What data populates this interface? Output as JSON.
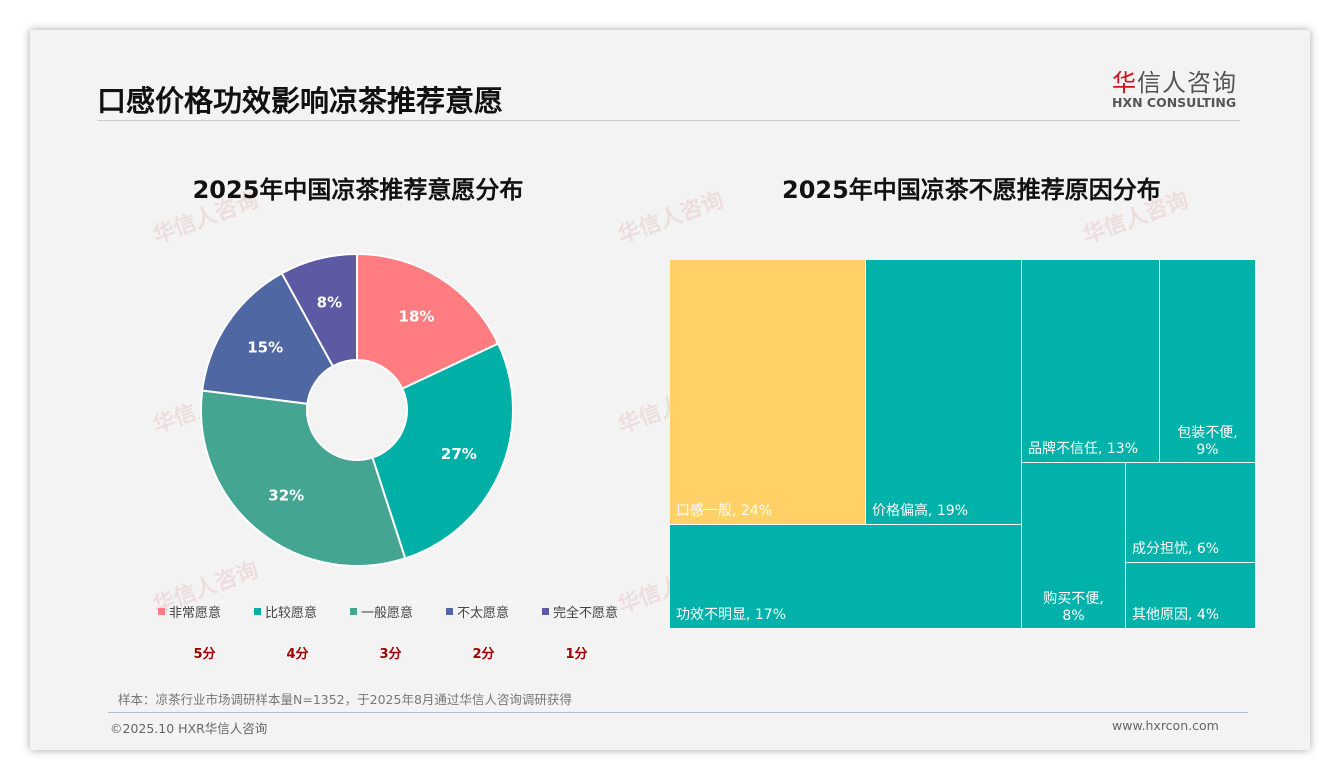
{
  "header": {
    "title": "口感价格功效影响凉茶推荐意愿",
    "logo_cn_red": "华",
    "logo_cn": "信人咨询",
    "logo_en": "HXN CONSULTING"
  },
  "chart_data": [
    {
      "type": "pie",
      "title": "2025年中国凉茶推荐意愿分布",
      "categories": [
        "非常愿意",
        "比较愿意",
        "一般愿意",
        "不太愿意",
        "完全不愿意"
      ],
      "values": [
        18,
        27,
        32,
        15,
        8
      ],
      "labels": [
        "18%",
        "27%",
        "32%",
        "15%",
        "8%"
      ],
      "scores": [
        "5分",
        "4分",
        "3分",
        "2分",
        "1分"
      ],
      "colors": [
        "#ff7c80",
        "#00b0a6",
        "#45a593",
        "#4f67a3",
        "#5b5aa3"
      ],
      "legend": "bottom"
    },
    {
      "type": "treemap",
      "title": "2025年中国凉茶不愿推荐原因分布",
      "categories": [
        "口感一般",
        "价格偏高",
        "功效不明显",
        "品牌不信任",
        "包装不便",
        "购买不便",
        "成分担忧",
        "其他原因"
      ],
      "values": [
        24,
        19,
        17,
        13,
        9,
        8,
        6,
        4
      ],
      "labels": [
        "口感一般, 24%",
        "价格偏高, 19%",
        "功效不明显, 17%",
        "品牌不信任, 13%",
        "包装不便,",
        "购买不便,",
        "成分担忧, 6%",
        "其他原因, 4%"
      ],
      "labels2": [
        "9%",
        "8%"
      ],
      "colors": {
        "highlight": "#ffd166",
        "default": "#00b2a9"
      }
    }
  ],
  "footer": {
    "note": "样本：凉茶行业市场调研样本量N=1352，于2025年8月通过华信人咨询调研获得",
    "copyright": "©2025.10 HXR华信人咨询",
    "url": "www.hxrcon.com"
  }
}
